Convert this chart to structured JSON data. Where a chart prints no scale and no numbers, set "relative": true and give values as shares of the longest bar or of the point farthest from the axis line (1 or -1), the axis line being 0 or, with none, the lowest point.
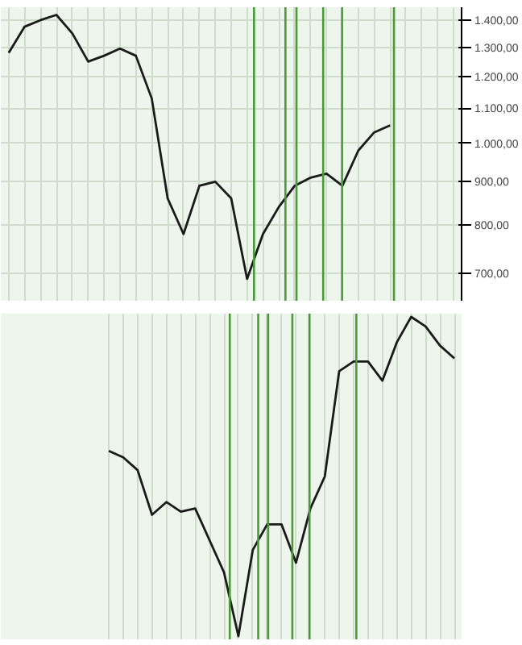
{
  "chart_data": [
    {
      "type": "line",
      "log": true,
      "grid": true,
      "tick_labels": "y",
      "ylim": [
        650,
        1450
      ],
      "categories": [
        null,
        null,
        null,
        null,
        null,
        null,
        null,
        null,
        null,
        null,
        null,
        null,
        null,
        null,
        null,
        null,
        null,
        null,
        null,
        null,
        null,
        null,
        null,
        null,
        null,
        null,
        null,
        null,
        null
      ],
      "yticks": [
        {
          "value": 700,
          "label": "700,00"
        },
        {
          "value": 800,
          "label": "800,00"
        },
        {
          "value": 900,
          "label": "900,00"
        },
        {
          "value": 1000,
          "label": "1.000,00"
        },
        {
          "value": 1100,
          "label": "1.100,00"
        },
        {
          "value": 1200,
          "label": "1.200,00"
        },
        {
          "value": 1300,
          "label": "1.300,00"
        },
        {
          "value": 1400,
          "label": "1.400,00"
        }
      ],
      "series": [
        {
          "color": "#1a1a1a",
          "values": [
            1280,
            1375,
            1400,
            1420,
            1350,
            1250,
            1270,
            1295,
            1270,
            1130,
            860,
            780,
            890,
            900,
            860,
            690,
            780,
            840,
            890,
            910,
            920,
            890,
            980,
            1030,
            1050,
            null,
            null,
            null,
            null
          ]
        }
      ]
    },
    {
      "type": "line",
      "relative": true,
      "grid": "x",
      "tick_labels": false,
      "categories": [
        null,
        null,
        null,
        null,
        null,
        null,
        null,
        null,
        null,
        null,
        null,
        null,
        null,
        null,
        null,
        null,
        null,
        null,
        null,
        null,
        null,
        null,
        null,
        null,
        null
      ],
      "series": [
        {
          "color": "#1a1a1a",
          "values": [
            0.58,
            0.56,
            0.52,
            0.38,
            0.42,
            0.39,
            0.4,
            0.3,
            0.2,
            0,
            0.27,
            0.35,
            0.35,
            0.23,
            0.4,
            0.5,
            0.83,
            0.86,
            0.86,
            0.8,
            0.92,
            1,
            0.97,
            0.91,
            0.87
          ]
        }
      ]
    }
  ]
}
